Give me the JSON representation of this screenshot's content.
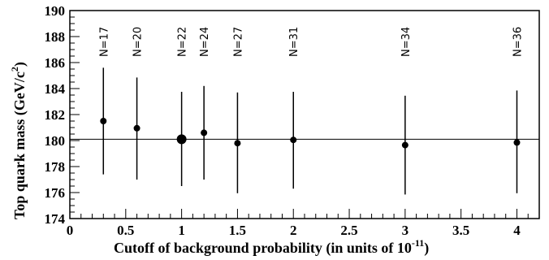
{
  "chart_data": {
    "type": "scatter",
    "xlabel": "Cutoff of background probability (in units of 10",
    "xlabel_sup": "-11",
    "xlabel_end": ")",
    "ylabel": "Top quark mass (GeV/c",
    "ylabel_sup": "2",
    "ylabel_end": ")",
    "xlim": [
      0,
      4.2
    ],
    "ylim": [
      174,
      190
    ],
    "x_ticks": [
      "0",
      "0.5",
      "1",
      "1.5",
      "2",
      "2.5",
      "3",
      "3.5",
      "4"
    ],
    "y_ticks": [
      "174",
      "176",
      "178",
      "180",
      "182",
      "184",
      "186",
      "188",
      "190"
    ],
    "reference_line": 180.1,
    "grid": false,
    "points": [
      {
        "x": 0.3,
        "y": 181.5,
        "err_low": 177.4,
        "err_high": 185.6,
        "label": "N=17",
        "highlight": false
      },
      {
        "x": 0.6,
        "y": 180.95,
        "err_low": 177.0,
        "err_high": 184.85,
        "label": "N=20",
        "highlight": false
      },
      {
        "x": 1.0,
        "y": 180.1,
        "err_low": 176.5,
        "err_high": 183.75,
        "label": "N=22",
        "highlight": true
      },
      {
        "x": 1.2,
        "y": 180.6,
        "err_low": 177.0,
        "err_high": 184.2,
        "label": "N=24",
        "highlight": false
      },
      {
        "x": 1.5,
        "y": 179.8,
        "err_low": 175.95,
        "err_high": 183.7,
        "label": "N=27",
        "highlight": false
      },
      {
        "x": 2.0,
        "y": 180.05,
        "err_low": 176.3,
        "err_high": 183.75,
        "label": "N=31",
        "highlight": false
      },
      {
        "x": 3.0,
        "y": 179.65,
        "err_low": 175.85,
        "err_high": 183.45,
        "label": "N=34",
        "highlight": false
      },
      {
        "x": 4.0,
        "y": 179.85,
        "err_low": 175.95,
        "err_high": 183.85,
        "label": "N=36",
        "highlight": false
      }
    ]
  }
}
